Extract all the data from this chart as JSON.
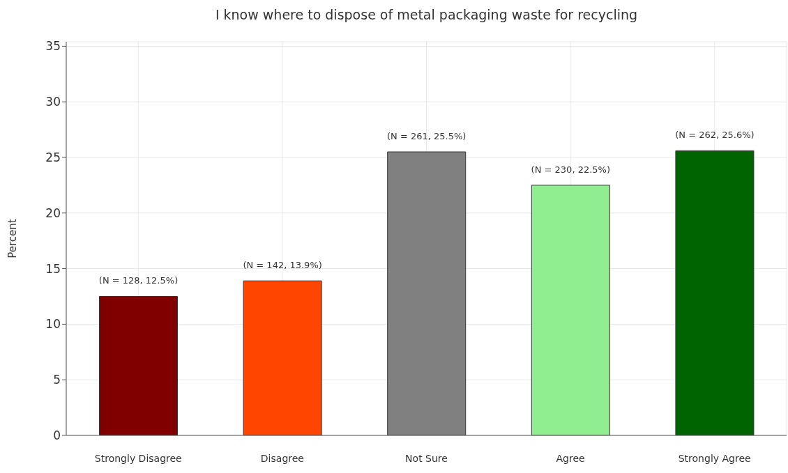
{
  "chart_data": {
    "type": "bar",
    "title": "I know where to dispose of metal packaging waste for recycling",
    "ylabel": "Percent",
    "categories": [
      "Strongly Disagree",
      "Disagree",
      "Not Sure",
      "Agree",
      "Strongly Agree"
    ],
    "values": [
      12.5,
      13.9,
      25.5,
      22.5,
      25.6
    ],
    "value_labels": [
      "(N = 128, 12.5%)",
      "(N = 142, 13.9%)",
      "(N = 261, 25.5%)",
      "(N = 230, 22.5%)",
      "(N = 262, 25.6%)"
    ],
    "colors": [
      "#800000",
      "#ff4500",
      "#808080",
      "#90ee90",
      "#006400"
    ],
    "ylim": [
      0,
      35.4
    ],
    "yticks": [
      0,
      5,
      10,
      15,
      20,
      25,
      30,
      35
    ],
    "grid": true
  }
}
